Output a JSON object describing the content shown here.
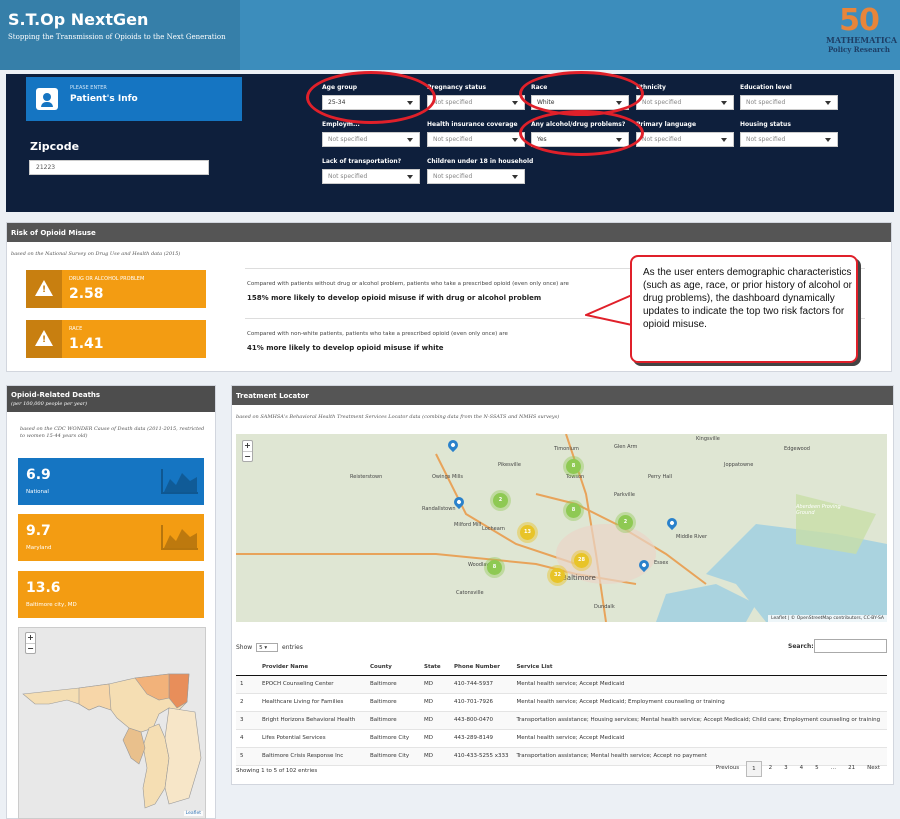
{
  "header": {
    "title": "S.T.Op NextGen",
    "subtitle": "Stopping the Transmission of Opioids to the Next Generation",
    "logo": {
      "number": "50",
      "line1": "MATHEMATICA",
      "line2": "Policy Research"
    }
  },
  "patient": {
    "enter_label": "PLEASE ENTER",
    "title": "Patient's Info",
    "zipcode_label": "Zipcode",
    "zipcode_value": "21223"
  },
  "fields": {
    "age_group": {
      "label": "Age group",
      "value": "25-34"
    },
    "pregnancy_status": {
      "label": "Pregnancy status",
      "value": "Not specified"
    },
    "race": {
      "label": "Race",
      "value": "White"
    },
    "ethnicity": {
      "label": "Ethnicity",
      "value": "Not specified"
    },
    "education_level": {
      "label": "Education level",
      "value": "Not specified"
    },
    "employment": {
      "label": "Employm...",
      "value": "Not specified"
    },
    "health_insurance": {
      "label": "Health insurance coverage",
      "value": "Not specified"
    },
    "alcohol_drug": {
      "label": "Any alcohol/drug problems?",
      "value": "Yes"
    },
    "primary_language": {
      "label": "Primary language",
      "value": "Not specified"
    },
    "housing_status": {
      "label": "Housing status",
      "value": "Not specified"
    },
    "transportation": {
      "label": "Lack of transportation?",
      "value": "Not specified"
    },
    "children_under_18": {
      "label": "Children under 18 in household",
      "value": "Not specified"
    }
  },
  "risk": {
    "title": "Risk of Opioid Misuse",
    "source": "based on the National Survey on Drug Use and Health data (2015)",
    "factors": [
      {
        "label": "DRUG OR ALCOHOL PROBLEM",
        "value": "2.58",
        "compare": "Compared with patients without drug or alcohol problem, patients who take a prescribed opioid (even only once) are",
        "headline": "158% more likely to develop opioid misuse if with drug or alcohol problem"
      },
      {
        "label": "RACE",
        "value": "1.41",
        "compare": "Compared with non-white patients, patients who take a prescribed opioid (even only once) are",
        "headline": "41% more likely to develop opioid misuse if white"
      }
    ]
  },
  "callout": {
    "text": "As the user enters demographic characteristics (such as age, race, or prior history of alcohol or drug problems), the dashboard dynamically updates to indicate the top two risk factors for opioid misuse."
  },
  "deaths": {
    "title": "Opioid-Related Deaths",
    "subtitle": "(per 100,000 people per year)",
    "source": "based on the CDC WONDER Cause of Death data (2011-2015, restricted to women 15-44 years old)",
    "boxes": [
      {
        "value": "6.9",
        "label": "National",
        "color": "#1575c2"
      },
      {
        "value": "9.7",
        "label": "Maryland",
        "color": "#f39c12"
      },
      {
        "value": "13.6",
        "label": "Baltimore city, MD",
        "color": "#f39c12"
      }
    ],
    "map_attribution": "Leaflet"
  },
  "locator": {
    "title": "Treatment Locator",
    "source": "based on SAMHSA's Behavioral Health Treatment Services Locator data (combing data from the N-SSATS and NMHS surveys)",
    "map_attribution": "Leaflet | © OpenStreetMap contributors, CC-BY-SA",
    "map_labels": [
      "Reisterstown",
      "Owings Mills",
      "Randallstown",
      "Towson",
      "Pikesville",
      "Lochearn",
      "Woodlawn",
      "Catonsville",
      "Baltimore",
      "Dundalk",
      "Essex",
      "Edgewood",
      "Kingsville",
      "Aberdeen Proving Ground",
      "Perry Hall",
      "Parkville",
      "Timonium",
      "Milford Mill",
      "Joppatowne",
      "Glen Arm",
      "Middle River"
    ],
    "clusters": [
      "8",
      "2",
      "8",
      "2",
      "13",
      "28",
      "8",
      "32"
    ],
    "show_label": "Show",
    "entries_label": "entries",
    "page_length": "5",
    "search_label": "Search:",
    "columns": [
      "",
      "Provider Name",
      "County",
      "State",
      "Phone Number",
      "Service List"
    ],
    "rows": [
      [
        "1",
        "EPOCH Counseling Center",
        "Baltimore",
        "MD",
        "410-744-5937",
        "Mental health service; Accept Medicaid"
      ],
      [
        "2",
        "Healthcare Living for Families",
        "Baltimore",
        "MD",
        "410-701-7926",
        "Mental health service; Accept Medicaid; Employment counseling or training"
      ],
      [
        "3",
        "Bright Horizons Behavioral Health",
        "Baltimore",
        "MD",
        "443-800-0470",
        "Transportation assistance; Housing services; Mental health service; Accept Medicaid; Child care; Employment counseling or training"
      ],
      [
        "4",
        "Lifes Potential Services",
        "Baltimore City",
        "MD",
        "443-289-8149",
        "Mental health service; Accept Medicaid"
      ],
      [
        "5",
        "Baltimore Crisis Response Inc",
        "Baltimore City",
        "MD",
        "410-433-5255 x333",
        "Transportation assistance; Mental health service; Accept no payment"
      ]
    ],
    "info": "Showing 1 to 5 of 102 entries",
    "pager": {
      "previous": "Previous",
      "pages": [
        "1",
        "2",
        "3",
        "4",
        "5",
        "…",
        "21"
      ],
      "next": "Next"
    }
  },
  "colors": {
    "header": "#3c8dbc",
    "panel_dark": "#0e1f3c",
    "orange": "#f39c12",
    "blue": "#1575c2",
    "highlight": "#e0202a"
  }
}
